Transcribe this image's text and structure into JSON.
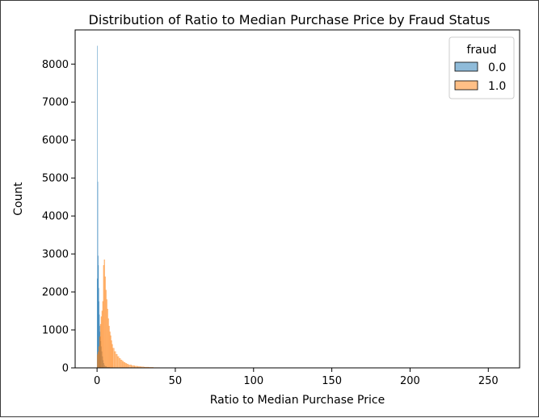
{
  "chart_data": {
    "type": "histogram",
    "title": "Distribution of Ratio to Median Purchase Price by Fraud Status",
    "xlabel": "Ratio to Median Purchase Price",
    "ylabel": "Count",
    "xlim": [
      -14,
      270
    ],
    "ylim": [
      0,
      8900
    ],
    "x_ticks": [
      0,
      50,
      100,
      150,
      200,
      250
    ],
    "y_ticks": [
      0,
      1000,
      2000,
      3000,
      4000,
      5000,
      6000,
      7000,
      8000
    ],
    "grid": false,
    "legend": {
      "title": "fraud",
      "placement": "top-right"
    },
    "series": [
      {
        "name": "0.0",
        "color": "#1f77b4",
        "bins": [
          [
            0.0,
            0.2,
            2350
          ],
          [
            0.2,
            0.4,
            8480
          ],
          [
            0.4,
            0.6,
            4900
          ],
          [
            0.6,
            0.8,
            2950
          ],
          [
            0.8,
            1.0,
            2700
          ],
          [
            1.0,
            1.2,
            2100
          ],
          [
            1.2,
            1.4,
            1750
          ],
          [
            1.4,
            1.6,
            1400
          ],
          [
            1.6,
            1.8,
            1100
          ],
          [
            1.8,
            2.0,
            950
          ],
          [
            2.0,
            2.2,
            820
          ],
          [
            2.2,
            2.5,
            700
          ],
          [
            2.5,
            2.8,
            560
          ],
          [
            2.8,
            3.2,
            430
          ],
          [
            3.2,
            3.6,
            300
          ],
          [
            3.6,
            4.0,
            200
          ],
          [
            4.0,
            4.5,
            120
          ],
          [
            4.5,
            5.0,
            70
          ],
          [
            5.0,
            6.0,
            40
          ],
          [
            6.0,
            8.0,
            15
          ],
          [
            8.0,
            12.0,
            5
          ]
        ]
      },
      {
        "name": "1.0",
        "color": "#ff7f0e",
        "bins": [
          [
            0.0,
            0.5,
            350
          ],
          [
            0.5,
            1.0,
            420
          ],
          [
            1.0,
            1.5,
            560
          ],
          [
            1.5,
            2.0,
            820
          ],
          [
            2.0,
            2.5,
            1150
          ],
          [
            2.5,
            3.0,
            1350
          ],
          [
            3.0,
            3.5,
            1500
          ],
          [
            3.5,
            4.0,
            1750
          ],
          [
            4.0,
            4.5,
            2700
          ],
          [
            4.5,
            5.0,
            2850
          ],
          [
            5.0,
            5.5,
            2400
          ],
          [
            5.5,
            6.0,
            2050
          ],
          [
            6.0,
            6.5,
            1800
          ],
          [
            6.5,
            7.0,
            1550
          ],
          [
            7.0,
            7.5,
            1300
          ],
          [
            7.5,
            8.0,
            1100
          ],
          [
            8.0,
            8.5,
            950
          ],
          [
            8.5,
            9.0,
            850
          ],
          [
            9.0,
            9.5,
            720
          ],
          [
            9.5,
            10.0,
            620
          ],
          [
            10.0,
            11.0,
            520
          ],
          [
            11.0,
            12.0,
            430
          ],
          [
            12.0,
            13.0,
            360
          ],
          [
            13.0,
            14.0,
            300
          ],
          [
            14.0,
            15.0,
            250
          ],
          [
            15.0,
            16.0,
            210
          ],
          [
            16.0,
            17.0,
            175
          ],
          [
            17.0,
            18.0,
            145
          ],
          [
            18.0,
            19.0,
            120
          ],
          [
            19.0,
            20.0,
            100
          ],
          [
            20.0,
            22.0,
            80
          ],
          [
            22.0,
            24.0,
            60
          ],
          [
            24.0,
            26.0,
            45
          ],
          [
            26.0,
            28.0,
            35
          ],
          [
            28.0,
            30.0,
            28
          ],
          [
            30.0,
            33.0,
            20
          ],
          [
            33.0,
            36.0,
            14
          ],
          [
            36.0,
            40.0,
            9
          ],
          [
            40.0,
            45.0,
            6
          ],
          [
            45.0,
            55.0,
            4
          ],
          [
            55.0,
            70.0,
            2
          ],
          [
            70.0,
            100.0,
            1
          ],
          [
            100.0,
            270.0,
            0.4
          ]
        ]
      }
    ]
  }
}
